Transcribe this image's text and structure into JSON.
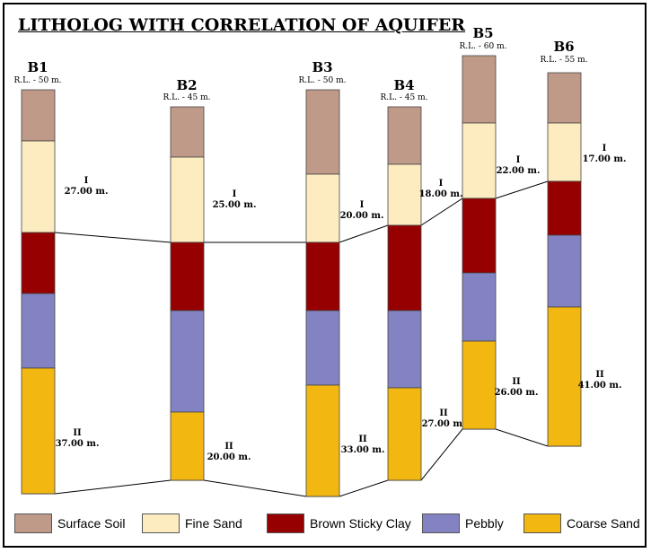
{
  "title": "LITHOLOG WITH CORRELATION OF AQUIFER",
  "colors": {
    "surface_soil": "#BF9A88",
    "fine_sand": "#FDECBF",
    "brown_sticky_clay": "#960000",
    "pebbly": "#8383C4",
    "coarse_sand": "#F2B711"
  },
  "legend": [
    {
      "key": "surface_soil",
      "label": "Surface Soil"
    },
    {
      "key": "fine_sand",
      "label": "Fine Sand"
    },
    {
      "key": "brown_sticky_clay",
      "label": "Brown Sticky Clay"
    },
    {
      "key": "pebbly",
      "label": "Pebbly"
    },
    {
      "key": "coarse_sand",
      "label": "Coarse Sand"
    }
  ],
  "boreholes": [
    {
      "name": "B1",
      "rl": "R.L. - 50 m.",
      "aquifer_I": {
        "label": "I",
        "thickness": "27.00 m."
      },
      "aquifer_II": {
        "label": "II",
        "thickness": "37.00 m."
      }
    },
    {
      "name": "B2",
      "rl": "R.L. - 45 m.",
      "aquifer_I": {
        "label": "I",
        "thickness": "25.00 m."
      },
      "aquifer_II": {
        "label": "II",
        "thickness": "20.00 m."
      }
    },
    {
      "name": "B3",
      "rl": "R.L. - 50 m.",
      "aquifer_I": {
        "label": "I",
        "thickness": "20.00 m."
      },
      "aquifer_II": {
        "label": "II",
        "thickness": "33.00 m."
      }
    },
    {
      "name": "B4",
      "rl": "R.L. - 45 m.",
      "aquifer_I": {
        "label": "I",
        "thickness": "18.00 m."
      },
      "aquifer_II": {
        "label": "II",
        "thickness": "27.00 m."
      }
    },
    {
      "name": "B5",
      "rl": "R.L. - 60 m.",
      "aquifer_I": {
        "label": "I",
        "thickness": "22.00 m."
      },
      "aquifer_II": {
        "label": "II",
        "thickness": "26.00 m."
      }
    },
    {
      "name": "B6",
      "rl": "R.L. - 55 m.",
      "aquifer_I": {
        "label": "I",
        "thickness": "17.00 m."
      },
      "aquifer_II": {
        "label": "II",
        "thickness": "41.00 m."
      }
    }
  ]
}
